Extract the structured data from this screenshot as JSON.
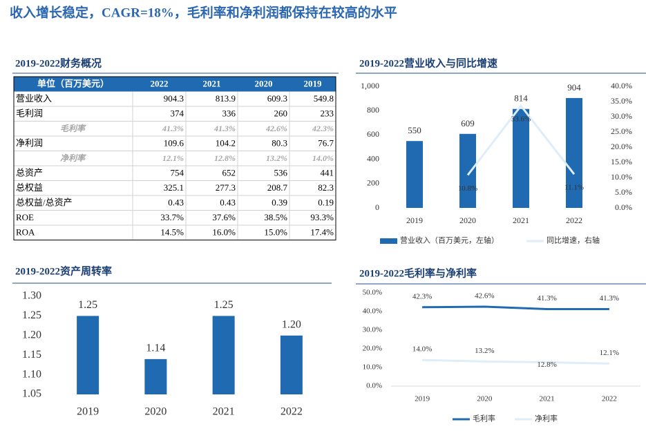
{
  "title": "收入增长稳定，CAGR=18%，毛利率和净利润都保持在较高的水平",
  "table": {
    "title": "2019-2022财务概况",
    "header": [
      "单位（百万美元）",
      "2022",
      "2021",
      "2020",
      "2019"
    ],
    "rows": [
      [
        "营业收入",
        "904.3",
        "813.9",
        "609.3",
        "549.8"
      ],
      [
        "毛利润",
        "374",
        "336",
        "260",
        "233"
      ],
      [
        "毛利率",
        "41.3%",
        "41.3%",
        "42.6%",
        "42.3%"
      ],
      [
        "净利润",
        "109.6",
        "104.2",
        "80.3",
        "76.7"
      ],
      [
        "净利率",
        "12.1%",
        "12.8%",
        "13.2%",
        "14.0%"
      ],
      [
        "总资产",
        "754",
        "652",
        "536",
        "441"
      ],
      [
        "总权益",
        "325.1",
        "277.3",
        "208.7",
        "82.3"
      ],
      [
        "总权益/总资产",
        "0.43",
        "0.43",
        "0.39",
        "0.19"
      ],
      [
        "ROE",
        "33.7%",
        "37.6%",
        "38.5%",
        "93.3%"
      ],
      [
        "ROA",
        "14.5%",
        "16.0%",
        "15.0%",
        "17.4%"
      ]
    ]
  },
  "chart_data": [
    {
      "type": "bar",
      "title": "2019-2022营业收入与同比增速",
      "categories": [
        "2019",
        "2020",
        "2021",
        "2022"
      ],
      "series": [
        {
          "name": "营业收入（百万美元，左轴）",
          "color": "#1f6ab0",
          "values": [
            550,
            609,
            814,
            904
          ]
        },
        {
          "name": "同比增速，右轴",
          "color": "#ddeefa",
          "type": "line",
          "axis": "y2",
          "values": [
            null,
            10.8,
            33.6,
            11.1
          ],
          "value_labels": [
            null,
            "10.8%",
            "33.6%",
            "11.1%"
          ]
        }
      ],
      "ylim": [
        0,
        1000
      ],
      "yticks": [
        0,
        200,
        400,
        600,
        800,
        {
          "value": 1000,
          "label": "1,000"
        }
      ],
      "y2lim": [
        0,
        40
      ],
      "y2ticks": [
        {
          "value": 0,
          "label": "0.0%"
        },
        {
          "value": 5,
          "label": "5.0%"
        },
        {
          "value": 10,
          "label": "10.0%"
        },
        {
          "value": 15,
          "label": "15.0%"
        },
        {
          "value": 20,
          "label": "20.0%"
        },
        {
          "value": 25,
          "label": "25.0%"
        },
        {
          "value": 30,
          "label": "30.0%"
        },
        {
          "value": 35,
          "label": "35.0%"
        },
        {
          "value": 40,
          "label": "40.0%"
        }
      ],
      "legend": "bottom"
    },
    {
      "type": "bar",
      "title": "2019-2022资产周转率",
      "categories": [
        "2019",
        "2020",
        "2021",
        "2022"
      ],
      "values": [
        1.25,
        1.14,
        1.25,
        1.2
      ],
      "value_labels": [
        "1.25",
        "1.14",
        "1.25",
        "1.20"
      ],
      "color": "#1f6ab0",
      "ylim": [
        1.05,
        1.3
      ],
      "yticks": [
        1.05,
        {
          "value": 1.1,
          "label": "1.10"
        },
        1.15,
        {
          "value": 1.2,
          "label": "1.20"
        },
        1.25,
        {
          "value": 1.3,
          "label": "1.30"
        }
      ]
    },
    {
      "type": "line",
      "title": "2019-2022毛利率与净利率",
      "categories": [
        "2019",
        "2020",
        "2021",
        "2022"
      ],
      "series": [
        {
          "name": "毛利率",
          "color": "#1f6ab0",
          "values": [
            42.3,
            42.6,
            41.3,
            41.3
          ],
          "value_labels": [
            "42.3%",
            "42.6%",
            "41.3%",
            "41.3%"
          ]
        },
        {
          "name": "净利率",
          "color": "#ddeefa",
          "values": [
            14.0,
            13.2,
            12.8,
            12.1
          ],
          "value_labels": [
            "14.0%",
            "13.2%",
            "12.8%",
            "12.1%"
          ]
        }
      ],
      "ylim": [
        0,
        50
      ],
      "yticks": [
        {
          "value": 0,
          "label": "0.0%"
        },
        {
          "value": 10,
          "label": "10.0%"
        },
        {
          "value": 20,
          "label": "20.0%"
        },
        {
          "value": 30,
          "label": "30.0%"
        },
        {
          "value": 40,
          "label": "40.0%"
        },
        {
          "value": 50,
          "label": "50.0%"
        }
      ],
      "legend": "bottom"
    }
  ]
}
